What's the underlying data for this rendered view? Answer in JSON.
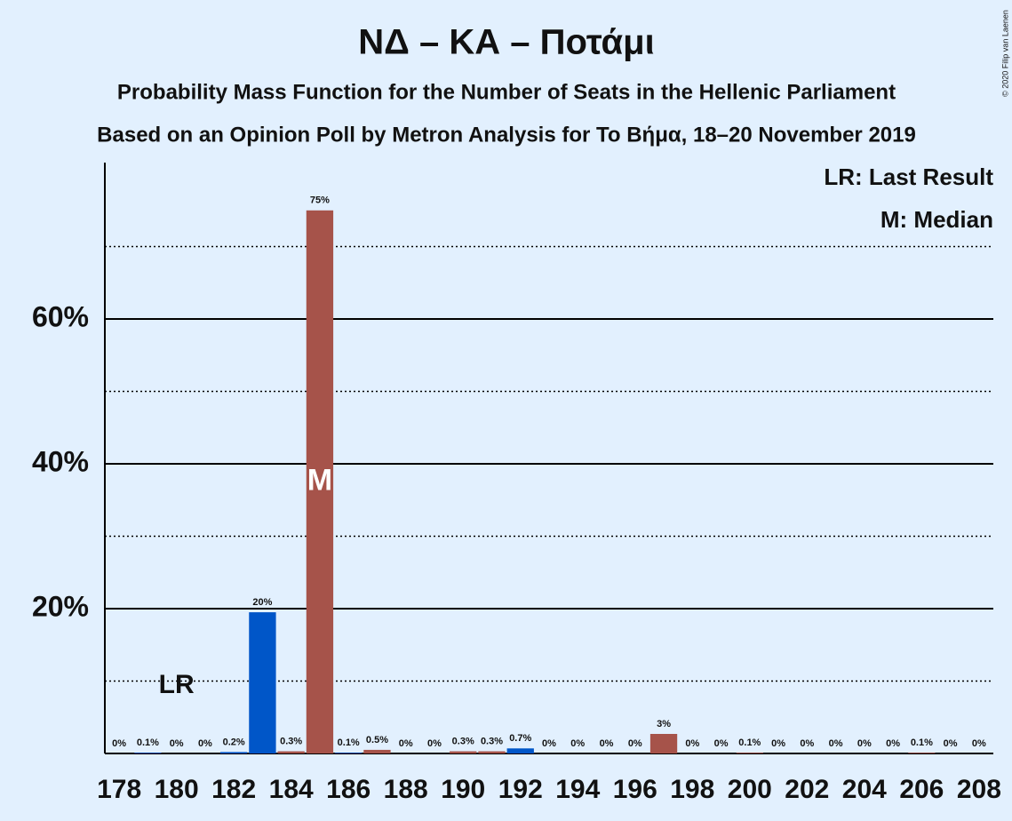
{
  "chart_data": {
    "type": "bar",
    "title": "ΝΔ – ΚΑ – Ποτάμι",
    "subtitle": "Probability Mass Function for the Number of Seats in the Hellenic Parliament",
    "subtitle2": "Based on an Opinion Poll by Metron Analysis for To Βήμα, 18–20 November 2019",
    "copyright": "© 2020 Filip van Laenen",
    "legend": [
      "LR: Last Result",
      "M: Median"
    ],
    "lr_label": "LR",
    "median_label": "M",
    "last_result": 180,
    "median": 185,
    "categories": [
      178,
      null,
      180,
      null,
      182,
      null,
      184,
      null,
      186,
      null,
      188,
      null,
      190,
      null,
      192,
      null,
      194,
      null,
      196,
      null,
      198,
      null,
      200,
      null,
      202,
      null,
      204,
      null,
      206,
      null,
      208
    ],
    "values": [
      0,
      0.1,
      0,
      0,
      0.2,
      19.5,
      0.3,
      75,
      0.1,
      0.5,
      0,
      0,
      0.3,
      0.3,
      0.7,
      0,
      0,
      0,
      0,
      2.7,
      0,
      0,
      0.1,
      0,
      0,
      0,
      0,
      0,
      0.1,
      0,
      0
    ],
    "value_labels": [
      "0%",
      "0.1%",
      "0%",
      "0%",
      "0.2%",
      "20%",
      "0.3%",
      "75%",
      "0.1%",
      "0.5%",
      "0%",
      "0%",
      "0.3%",
      "0.3%",
      "0.7%",
      "0%",
      "0%",
      "0%",
      "0%",
      "3%",
      "0%",
      "0%",
      "0.1%",
      "0%",
      "0%",
      "0%",
      "0%",
      "0%",
      "0.1%",
      "0%",
      "0%"
    ],
    "colors": [
      "#a6534a",
      "#0056c8",
      "#a6534a",
      "#a6534a",
      "#0056c8",
      "#0056c8",
      "#a6534a",
      "#a6534a",
      "#0056c8",
      "#a6534a",
      "#a6534a",
      "#a6534a",
      "#a6534a",
      "#a6534a",
      "#0056c8",
      "#a6534a",
      "#a6534a",
      "#a6534a",
      "#a6534a",
      "#a6534a",
      "#a6534a",
      "#a6534a",
      "#a6534a",
      "#a6534a",
      "#a6534a",
      "#a6534a",
      "#a6534a",
      "#a6534a",
      "#a6534a",
      "#a6534a",
      "#a6534a"
    ],
    "ylim": [
      0,
      81.6
    ],
    "yticks": [
      {
        "value": 20,
        "label": "20%"
      },
      {
        "value": 40,
        "label": "40%"
      },
      {
        "value": 60,
        "label": "60%"
      }
    ],
    "minor_yticks": [
      10,
      30,
      50,
      70
    ],
    "grid": true
  }
}
